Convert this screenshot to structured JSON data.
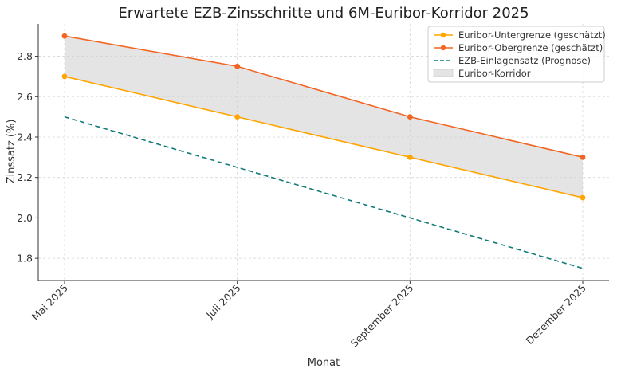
{
  "chart_data": {
    "type": "line",
    "title": "Erwartete EZB-Zinsschritte und 6M-Euribor-Korridor 2025",
    "xlabel": "Monat",
    "ylabel": "Zinssatz (%)",
    "categories": [
      "Mai 2025",
      "Juli 2025",
      "September 2025",
      "Dezember 2025"
    ],
    "ylim": [
      1.69,
      2.96
    ],
    "yticks": [
      "1.8",
      "2.0",
      "2.2",
      "2.4",
      "2.6",
      "2.8"
    ],
    "grid": true,
    "legend_position": "top-right",
    "series": [
      {
        "name": "Euribor-Untergrenze (geschätzt)",
        "values": [
          2.7,
          2.5,
          2.3,
          2.1
        ],
        "color": "#FFA500",
        "style": "solid",
        "marker": "circle"
      },
      {
        "name": "Euribor-Obergrenze (geschätzt)",
        "values": [
          2.9,
          2.75,
          2.5,
          2.3
        ],
        "color": "#F26522",
        "style": "solid",
        "marker": "circle"
      },
      {
        "name": "EZB-Einlagensatz (Prognose)",
        "values": [
          2.5,
          2.25,
          2.0,
          1.75
        ],
        "color": "#117A7A",
        "style": "dashed",
        "marker": "none"
      }
    ],
    "band": {
      "name": "Euribor-Korridor",
      "color": "#D3D3D3"
    }
  }
}
